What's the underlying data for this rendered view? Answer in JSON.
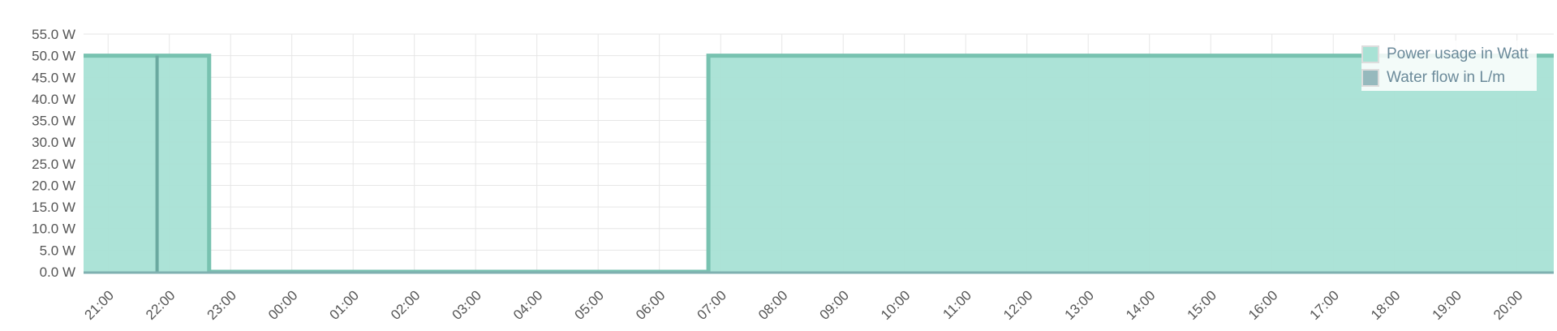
{
  "chart_data": {
    "type": "area",
    "title": "",
    "xlabel": "",
    "ylabel": "",
    "ylim": [
      0,
      55
    ],
    "y_ticks": [
      "0.0 W",
      "5.0 W",
      "10.0 W",
      "15.0 W",
      "20.0 W",
      "25.0 W",
      "30.0 W",
      "35.0 W",
      "40.0 W",
      "45.0 W",
      "50.0 W",
      "55.0 W"
    ],
    "x_ticks": [
      "21:00",
      "22:00",
      "23:00",
      "00:00",
      "01:00",
      "02:00",
      "03:00",
      "04:00",
      "05:00",
      "06:00",
      "07:00",
      "08:00",
      "09:00",
      "10:00",
      "11:00",
      "12:00",
      "13:00",
      "14:00",
      "15:00",
      "16:00",
      "17:00",
      "18:00",
      "19:00",
      "20:00"
    ],
    "x_range_hours": [
      20.6,
      44.6
    ],
    "grid": true,
    "legend_position": "top-right",
    "series": [
      {
        "name": "Power usage in Watt",
        "color": "#a8e2d5",
        "line_color": "#78c2b0",
        "points": [
          [
            20.6,
            50
          ],
          [
            22.65,
            50
          ],
          [
            22.65,
            0
          ],
          [
            30.8,
            0
          ],
          [
            30.8,
            50
          ],
          [
            44.6,
            50
          ]
        ]
      },
      {
        "name": "Water flow in L/m",
        "color": "#96b9bd",
        "line_color": "#6aa9a0",
        "points": [
          [
            21.8,
            0
          ],
          [
            21.8,
            50
          ],
          [
            21.8,
            0
          ]
        ]
      }
    ]
  }
}
